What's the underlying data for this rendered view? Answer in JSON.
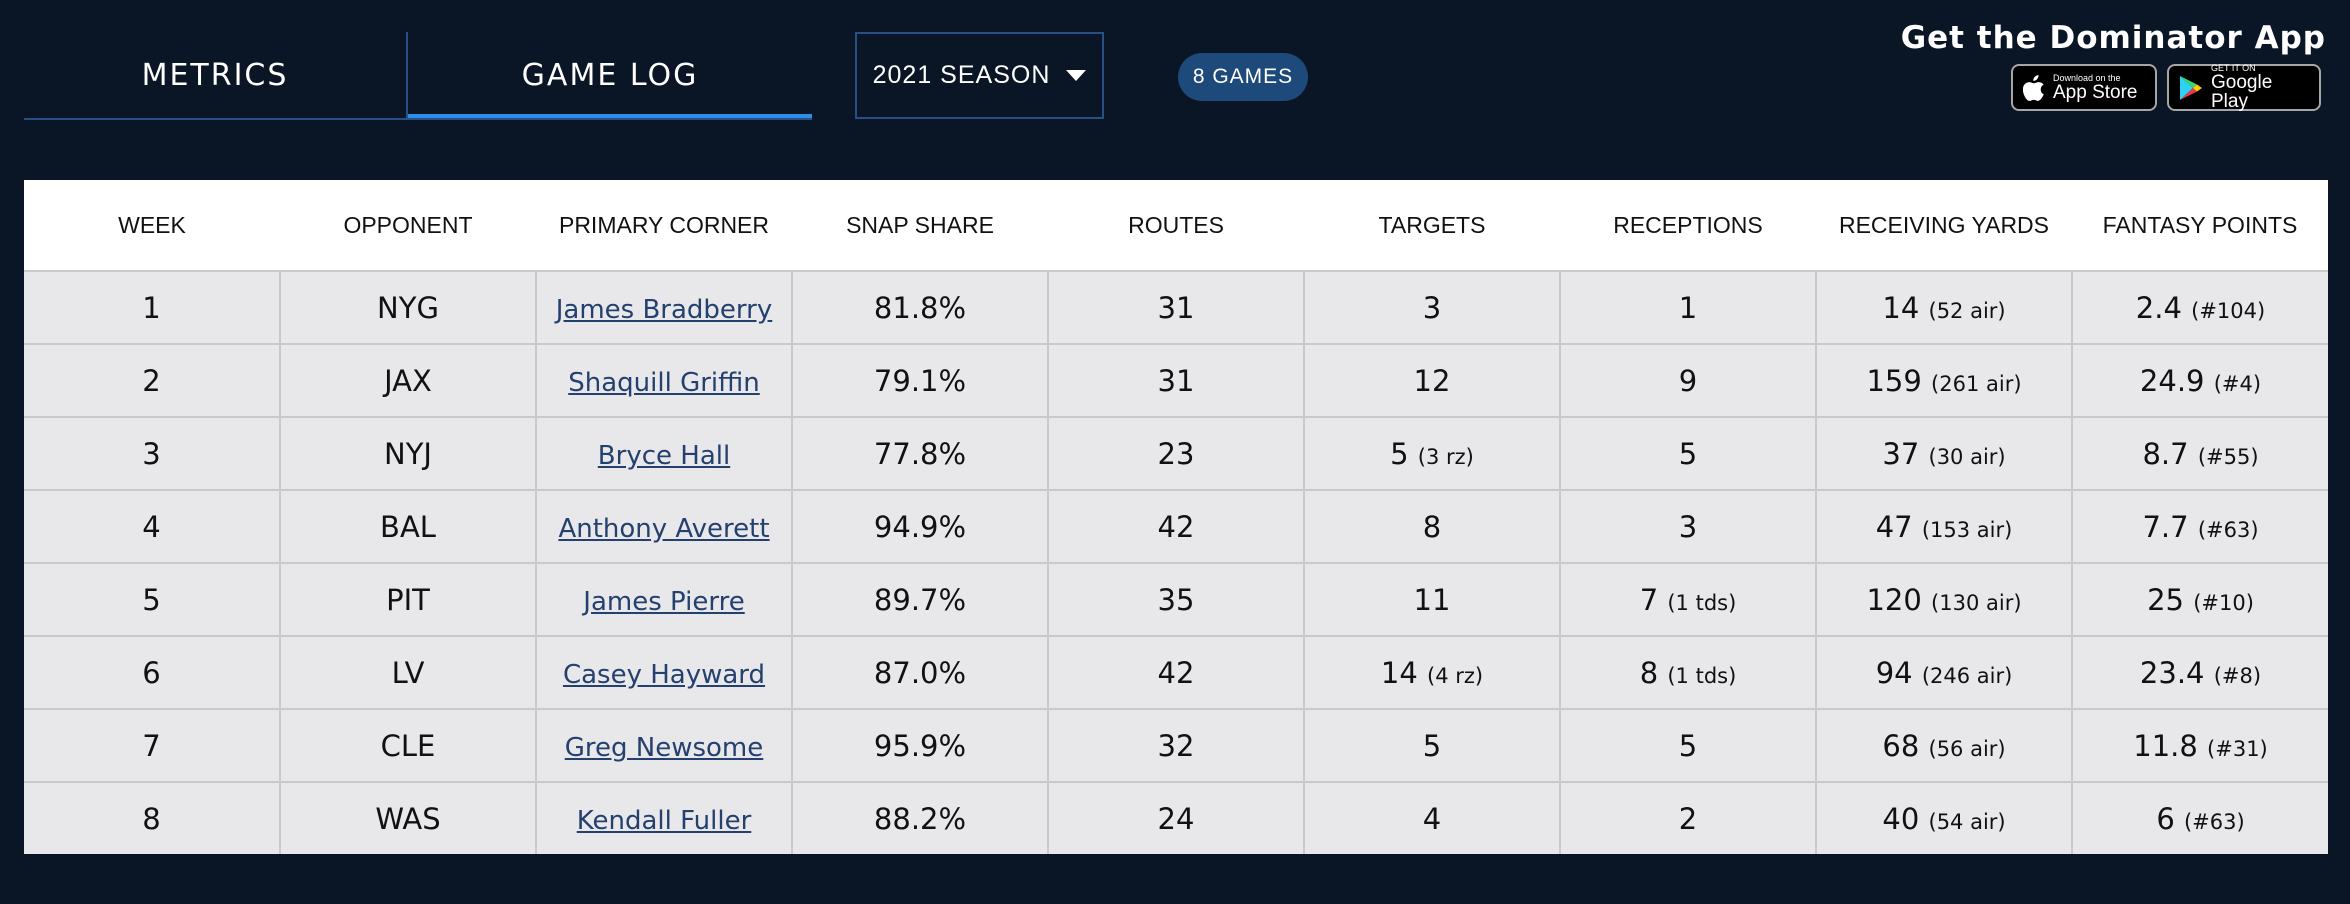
{
  "tabs": [
    {
      "label": "METRICS",
      "active": false
    },
    {
      "label": "GAME LOG",
      "active": true
    }
  ],
  "season": {
    "label": "2021 SEASON"
  },
  "games_badge": "8 GAMES",
  "promo": {
    "title": "Get the Dominator App",
    "app_store": {
      "small": "Download on the",
      "big": "App Store"
    },
    "google_play": {
      "small": "GET IT ON",
      "big": "Google Play"
    }
  },
  "colors": {
    "background": "#0a1626",
    "accent": "#2e8fe8",
    "link": "#24406e",
    "badge": "#1d4a7a"
  },
  "table": {
    "headers": [
      "WEEK",
      "OPPONENT",
      "PRIMARY CORNER",
      "SNAP SHARE",
      "ROUTES",
      "TARGETS",
      "RECEPTIONS",
      "RECEIVING YARDS",
      "FANTASY POINTS"
    ],
    "rows": [
      {
        "week": "1",
        "opponent": "NYG",
        "corner": "James Bradberry",
        "snap_share": "81.8%",
        "routes": "31",
        "targets": "3",
        "targets_sub": "",
        "receptions": "1",
        "receptions_sub": "",
        "yards": "14",
        "yards_sub": "(52 air)",
        "points": "2.4",
        "points_sub": "(#104)"
      },
      {
        "week": "2",
        "opponent": "JAX",
        "corner": "Shaquill Griffin",
        "snap_share": "79.1%",
        "routes": "31",
        "targets": "12",
        "targets_sub": "",
        "receptions": "9",
        "receptions_sub": "",
        "yards": "159",
        "yards_sub": "(261 air)",
        "points": "24.9",
        "points_sub": "(#4)"
      },
      {
        "week": "3",
        "opponent": "NYJ",
        "corner": "Bryce Hall",
        "snap_share": "77.8%",
        "routes": "23",
        "targets": "5",
        "targets_sub": "(3 rz)",
        "receptions": "5",
        "receptions_sub": "",
        "yards": "37",
        "yards_sub": "(30 air)",
        "points": "8.7",
        "points_sub": "(#55)"
      },
      {
        "week": "4",
        "opponent": "BAL",
        "corner": "Anthony Averett",
        "snap_share": "94.9%",
        "routes": "42",
        "targets": "8",
        "targets_sub": "",
        "receptions": "3",
        "receptions_sub": "",
        "yards": "47",
        "yards_sub": "(153 air)",
        "points": "7.7",
        "points_sub": "(#63)"
      },
      {
        "week": "5",
        "opponent": "PIT",
        "corner": "James Pierre",
        "snap_share": "89.7%",
        "routes": "35",
        "targets": "11",
        "targets_sub": "",
        "receptions": "7",
        "receptions_sub": "(1 tds)",
        "yards": "120",
        "yards_sub": "(130 air)",
        "points": "25",
        "points_sub": "(#10)"
      },
      {
        "week": "6",
        "opponent": "LV",
        "corner": "Casey Hayward",
        "snap_share": "87.0%",
        "routes": "42",
        "targets": "14",
        "targets_sub": "(4 rz)",
        "receptions": "8",
        "receptions_sub": "(1 tds)",
        "yards": "94",
        "yards_sub": "(246 air)",
        "points": "23.4",
        "points_sub": "(#8)"
      },
      {
        "week": "7",
        "opponent": "CLE",
        "corner": "Greg Newsome",
        "snap_share": "95.9%",
        "routes": "32",
        "targets": "5",
        "targets_sub": "",
        "receptions": "5",
        "receptions_sub": "",
        "yards": "68",
        "yards_sub": "(56 air)",
        "points": "11.8",
        "points_sub": "(#31)"
      },
      {
        "week": "8",
        "opponent": "WAS",
        "corner": "Kendall Fuller",
        "snap_share": "88.2%",
        "routes": "24",
        "targets": "4",
        "targets_sub": "",
        "receptions": "2",
        "receptions_sub": "",
        "yards": "40",
        "yards_sub": "(54 air)",
        "points": "6",
        "points_sub": "(#63)"
      }
    ]
  }
}
